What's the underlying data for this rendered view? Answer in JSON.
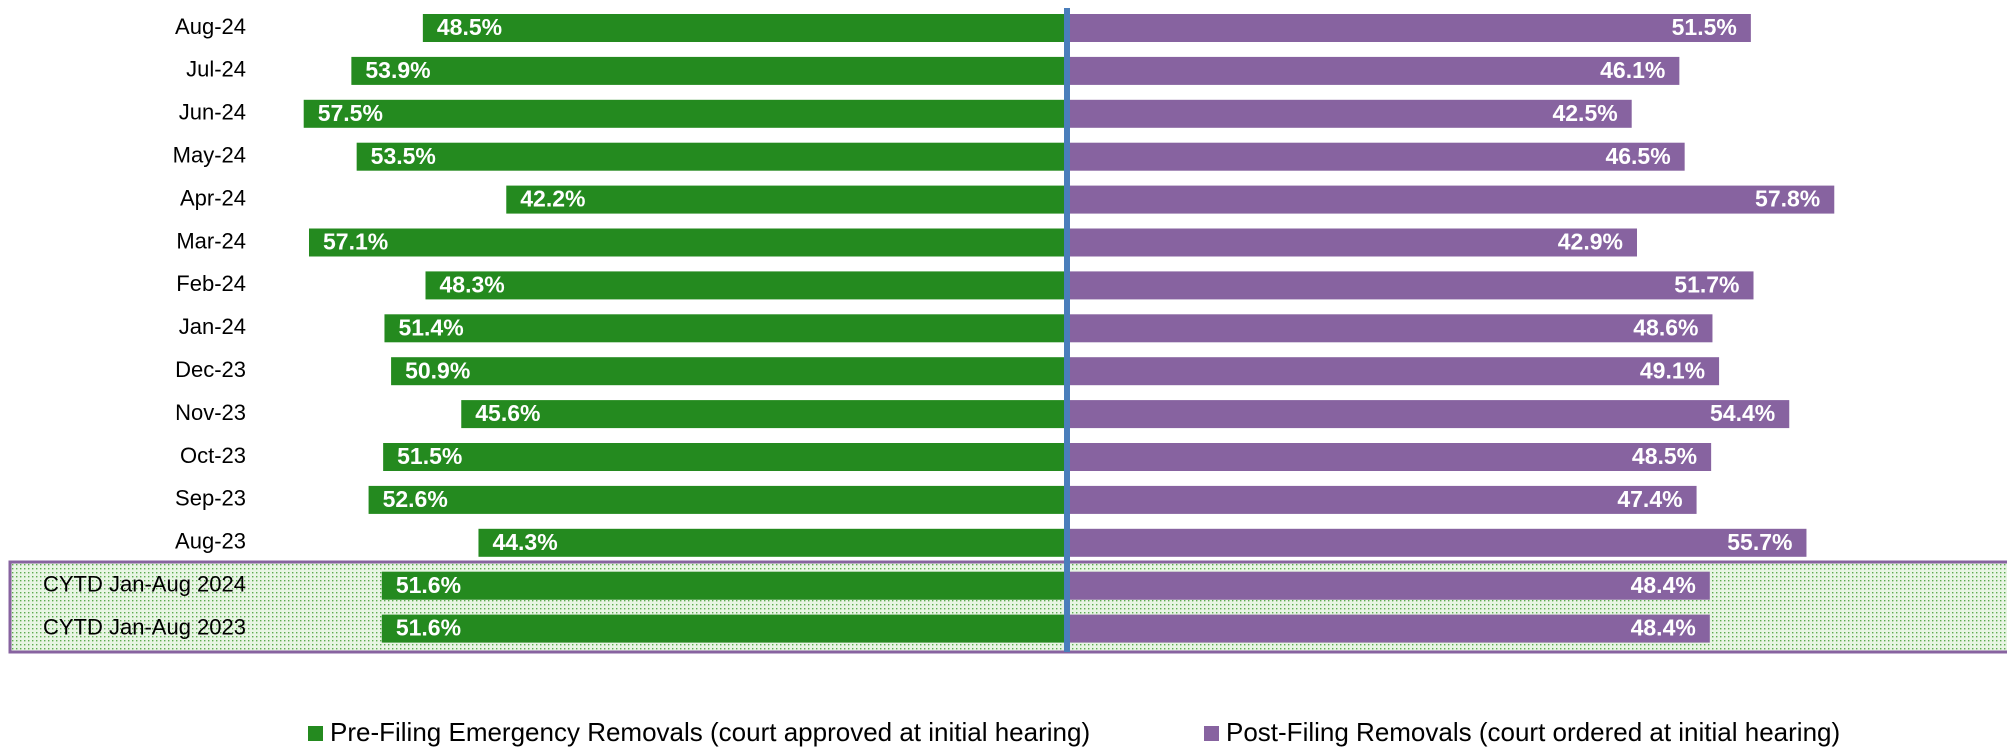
{
  "chart_data": {
    "type": "diverging_bar",
    "categories": [
      "Aug-24",
      "Jul-24",
      "Jun-24",
      "May-24",
      "Apr-24",
      "Mar-24",
      "Feb-24",
      "Jan-24",
      "Dec-23",
      "Nov-23",
      "Oct-23",
      "Sep-23",
      "Aug-23",
      "CYTD Jan-Aug 2024",
      "CYTD Jan-Aug 2023"
    ],
    "series": [
      {
        "name": "Pre-Filing Emergency Removals (court approved at initial hearing)",
        "color": "#248a1f",
        "values": [
          48.5,
          53.9,
          57.5,
          53.5,
          42.2,
          57.1,
          48.3,
          51.4,
          50.9,
          45.6,
          51.5,
          52.6,
          44.3,
          51.6,
          51.6
        ],
        "value_labels": [
          "48.5%",
          "53.9%",
          "57.5%",
          "53.5%",
          "42.2%",
          "57.1%",
          "48.3%",
          "51.4%",
          "50.9%",
          "45.6%",
          "51.5%",
          "52.6%",
          "44.3%",
          "51.6%",
          "51.6%"
        ]
      },
      {
        "name": "Post-Filing Removals (court ordered at initial hearing)",
        "color": "#8763a0",
        "values": [
          51.5,
          46.1,
          42.5,
          46.5,
          57.8,
          42.9,
          51.7,
          48.6,
          49.1,
          54.4,
          48.5,
          47.4,
          55.7,
          48.4,
          48.4
        ],
        "value_labels": [
          "51.5%",
          "46.1%",
          "42.5%",
          "46.5%",
          "57.8%",
          "42.9%",
          "51.7%",
          "48.6%",
          "49.1%",
          "54.4%",
          "48.5%",
          "47.4%",
          "55.7%",
          "48.4%",
          "48.4%"
        ]
      }
    ]
  }
}
